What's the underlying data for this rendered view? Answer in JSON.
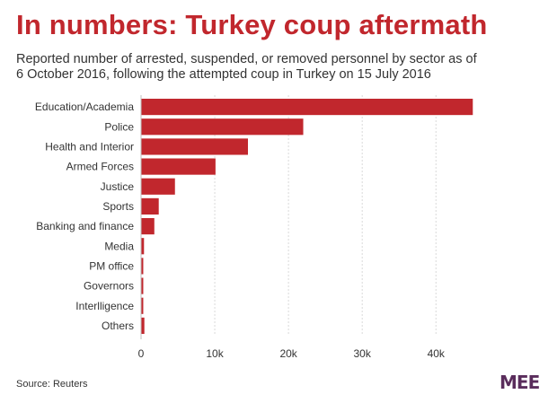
{
  "title": "In numbers: Turkey coup aftermath",
  "subtitle_lines": [
    "Reported number of arrested, suspended, or removed personnel by sector as of",
    "6 October 2016, following the attempted coup in Turkey on 15 July 2016"
  ],
  "source": "Source: Reuters",
  "logo_text": "MEE",
  "colors": {
    "bar": "#c1272d",
    "title": "#c1272d",
    "grid": "#d9d9d9",
    "logo": "#5a2d5c"
  },
  "chart_data": {
    "type": "bar",
    "orientation": "horizontal",
    "categories": [
      "Education/Academia",
      "Police",
      "Health and Interior",
      "Armed Forces",
      "Justice",
      "Sports",
      "Banking and finance",
      "Media",
      "PM office",
      "Governors",
      "Interlligence",
      "Others"
    ],
    "values": [
      45000,
      22000,
      14500,
      10100,
      4600,
      2400,
      1800,
      400,
      300,
      300,
      300,
      450
    ],
    "xlim": [
      0,
      48500
    ],
    "xticks": [
      0,
      10000,
      20000,
      30000,
      40000
    ],
    "xtick_labels": [
      "0",
      "10k",
      "20k",
      "30k",
      "40k"
    ],
    "grid": "vertical",
    "xlabel": "",
    "ylabel": ""
  }
}
